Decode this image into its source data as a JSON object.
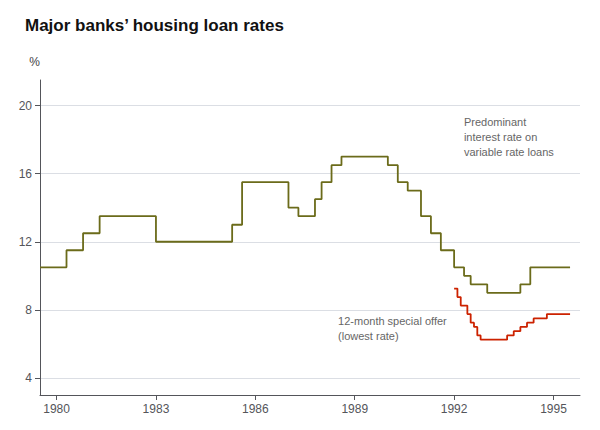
{
  "chart_data": {
    "type": "step",
    "title": "Major banks’ housing loan rates",
    "ylabel": "%",
    "xlim": [
      1979.5,
      1995.8
    ],
    "ylim": [
      3,
      21.5
    ],
    "xticks": [
      1980,
      1983,
      1986,
      1989,
      1992,
      1995
    ],
    "yticks": [
      4,
      8,
      12,
      16,
      20
    ],
    "grid": true,
    "annotations": [
      "Predominant\ninterest rate on\nvariable rate loans",
      "12-month special offer\n(lowest rate)"
    ],
    "series": [
      {
        "color": "#6b6b1a",
        "x": [
          1979.5,
          1980.0,
          1980.3,
          1980.5,
          1980.8,
          1981.0,
          1981.3,
          1981.6,
          1982.0,
          1982.5,
          1983.0,
          1983.5,
          1984.0,
          1984.5,
          1985.0,
          1985.3,
          1985.6,
          1986.0,
          1986.5,
          1986.8,
          1987.0,
          1987.3,
          1987.6,
          1987.8,
          1988.0,
          1988.3,
          1988.6,
          1989.0,
          1989.5,
          1990.0,
          1990.3,
          1990.6,
          1991.0,
          1991.3,
          1991.6,
          1992.0,
          1992.3,
          1992.5,
          1992.8,
          1993.0,
          1993.5,
          1994.0,
          1994.3,
          1994.7,
          1995.0,
          1995.5
        ],
        "values": [
          10.5,
          10.5,
          11.5,
          11.5,
          12.5,
          12.5,
          13.5,
          13.5,
          13.5,
          13.5,
          12.0,
          12.0,
          12.0,
          12.0,
          12.0,
          13.0,
          15.5,
          15.5,
          15.5,
          15.5,
          14.0,
          13.5,
          13.5,
          14.5,
          15.5,
          16.5,
          17.0,
          17.0,
          17.0,
          16.5,
          15.5,
          15.0,
          13.5,
          12.5,
          11.5,
          10.5,
          10.0,
          9.5,
          9.5,
          9.0,
          9.0,
          9.5,
          10.5,
          10.5,
          10.5,
          10.5
        ]
      },
      {
        "color": "#cc2200",
        "x": [
          1992.0,
          1992.1,
          1992.2,
          1992.4,
          1992.5,
          1992.6,
          1992.7,
          1992.8,
          1993.0,
          1993.3,
          1993.6,
          1993.8,
          1994.0,
          1994.2,
          1994.4,
          1994.6,
          1994.8,
          1995.0,
          1995.5
        ],
        "values": [
          9.25,
          8.75,
          8.25,
          7.75,
          7.25,
          7.0,
          6.5,
          6.25,
          6.25,
          6.25,
          6.5,
          6.75,
          7.0,
          7.25,
          7.5,
          7.5,
          7.75,
          7.75,
          7.75
        ]
      }
    ]
  }
}
